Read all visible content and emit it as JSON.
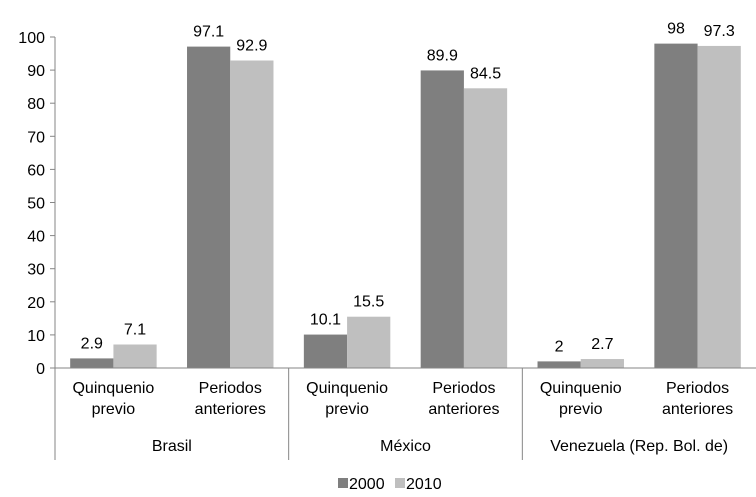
{
  "chart_data": {
    "type": "bar",
    "groups": [
      {
        "label": "Brasil",
        "categories": [
          "Quinquenio|previo",
          "Periodos|anteriores"
        ]
      },
      {
        "label": "México",
        "categories": [
          "Quinquenio|previo",
          "Periodos|anteriores"
        ]
      },
      {
        "label": "Venezuela (Rep. Bol. de)",
        "categories": [
          "Quinquenio|previo",
          "Periodos|anteriores"
        ]
      }
    ],
    "series": [
      {
        "name": "2000",
        "color": "#7f7f7f",
        "values": [
          2.9,
          97.1,
          10.1,
          89.9,
          2,
          98
        ],
        "labels": [
          "2.9",
          "97.1",
          "10.1",
          "89.9",
          "2",
          "98"
        ]
      },
      {
        "name": "2010",
        "color": "#bfbfbf",
        "values": [
          7.1,
          92.9,
          15.5,
          84.5,
          2.7,
          97.3
        ],
        "labels": [
          "7.1",
          "92.9",
          "15.5",
          "84.5",
          "2.7",
          "97.3"
        ]
      }
    ],
    "yticks": [
      "0",
      "10",
      "20",
      "30",
      "40",
      "50",
      "60",
      "70",
      "80",
      "90",
      "100"
    ],
    "ylim": [
      0,
      100
    ],
    "grid": false,
    "legend_position": "bottom"
  }
}
